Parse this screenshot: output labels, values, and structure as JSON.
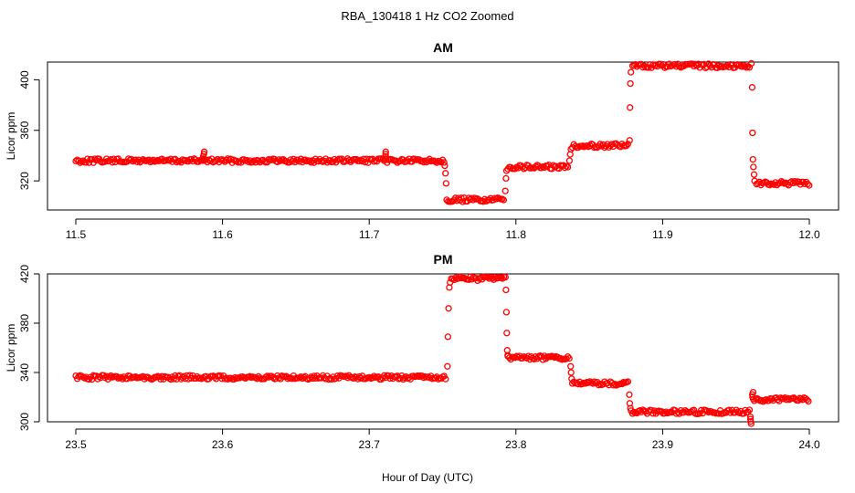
{
  "figure": {
    "title": "RBA_130418  1 Hz CO2 Zoomed",
    "xlabel": "Hour of Day (UTC)",
    "point_color": "#ff0000"
  },
  "chart_data": [
    {
      "type": "scatter",
      "title": "AM",
      "xlabel": "Hour of Day (UTC)",
      "ylabel": "Licor ppm",
      "xlim": [
        11.5,
        12.0
      ],
      "ylim": [
        297,
        414
      ],
      "xticks": [
        "11.5",
        "11.6",
        "11.7",
        "11.8",
        "11.9",
        "12.0"
      ],
      "yticks": [
        "320",
        "360",
        "400"
      ],
      "grid": false,
      "series": [
        {
          "segments": [
            {
              "x": [
                11.5,
                11.752
              ],
              "y": 336
            },
            {
              "x": [
                11.7528,
                11.792
              ],
              "y": 305
            },
            {
              "x": [
                11.7945,
                11.836
              ],
              "y": 331
            },
            {
              "x": [
                11.8385,
                11.877
              ],
              "y": 348
            },
            {
              "x": [
                11.8795,
                11.96
              ],
              "y": 411
            },
            {
              "x": [
                11.964,
                12.0
              ],
              "y": 318
            }
          ],
          "spikes": [
            {
              "x": 11.587,
              "y": 343
            },
            {
              "x": 11.711,
              "y": 343
            }
          ],
          "transitions": [
            {
              "x": 11.7515,
              "y": 332
            },
            {
              "x": 11.752,
              "y": 326
            },
            {
              "x": 11.7524,
              "y": 318
            },
            {
              "x": 11.7928,
              "y": 312
            },
            {
              "x": 11.7932,
              "y": 322
            },
            {
              "x": 11.7936,
              "y": 328
            },
            {
              "x": 11.8365,
              "y": 336
            },
            {
              "x": 11.837,
              "y": 341
            },
            {
              "x": 11.8375,
              "y": 345
            },
            {
              "x": 11.8775,
              "y": 352
            },
            {
              "x": 11.8778,
              "y": 378
            },
            {
              "x": 11.878,
              "y": 397
            },
            {
              "x": 11.8784,
              "y": 406
            },
            {
              "x": 11.9605,
              "y": 413
            },
            {
              "x": 11.961,
              "y": 394
            },
            {
              "x": 11.9613,
              "y": 358
            },
            {
              "x": 11.9616,
              "y": 337
            },
            {
              "x": 11.9619,
              "y": 331
            },
            {
              "x": 11.9623,
              "y": 325
            },
            {
              "x": 11.9627,
              "y": 320
            }
          ]
        }
      ]
    },
    {
      "type": "scatter",
      "title": "PM",
      "xlabel": "Hour of Day (UTC)",
      "ylabel": "Licor ppm",
      "xlim": [
        23.5,
        24.0
      ],
      "ylim": [
        300,
        420
      ],
      "xticks": [
        "23.5",
        "23.6",
        "23.7",
        "23.8",
        "23.9",
        "24.0"
      ],
      "yticks": [
        "300",
        "340",
        "380",
        "420"
      ],
      "grid": false,
      "series": [
        {
          "segments": [
            {
              "x": [
                23.5,
                23.753
              ],
              "y": 336
            },
            {
              "x": [
                23.756,
                23.793
              ],
              "y": 416
            },
            {
              "x": [
                23.7945,
                23.837
              ],
              "y": 352
            },
            {
              "x": [
                23.8385,
                23.877
              ],
              "y": 331
            },
            {
              "x": [
                23.8785,
                23.96
              ],
              "y": 308
            },
            {
              "x": [
                23.9625,
                24.0
              ],
              "y": 318
            }
          ],
          "spikes": [
            {
              "x": 23.96,
              "y": 304
            },
            {
              "x": 23.9612,
              "y": 324
            }
          ],
          "transitions": [
            {
              "x": 23.7533,
              "y": 345
            },
            {
              "x": 23.7537,
              "y": 369
            },
            {
              "x": 23.7541,
              "y": 392
            },
            {
              "x": 23.7546,
              "y": 409
            },
            {
              "x": 23.7551,
              "y": 413
            },
            {
              "x": 23.7932,
              "y": 407
            },
            {
              "x": 23.7935,
              "y": 389
            },
            {
              "x": 23.7938,
              "y": 372
            },
            {
              "x": 23.7941,
              "y": 358
            },
            {
              "x": 23.7944,
              "y": 354
            },
            {
              "x": 23.8373,
              "y": 345
            },
            {
              "x": 23.8376,
              "y": 340
            },
            {
              "x": 23.838,
              "y": 335
            },
            {
              "x": 23.8773,
              "y": 322
            },
            {
              "x": 23.8776,
              "y": 315
            },
            {
              "x": 23.878,
              "y": 311
            }
          ]
        }
      ]
    }
  ]
}
